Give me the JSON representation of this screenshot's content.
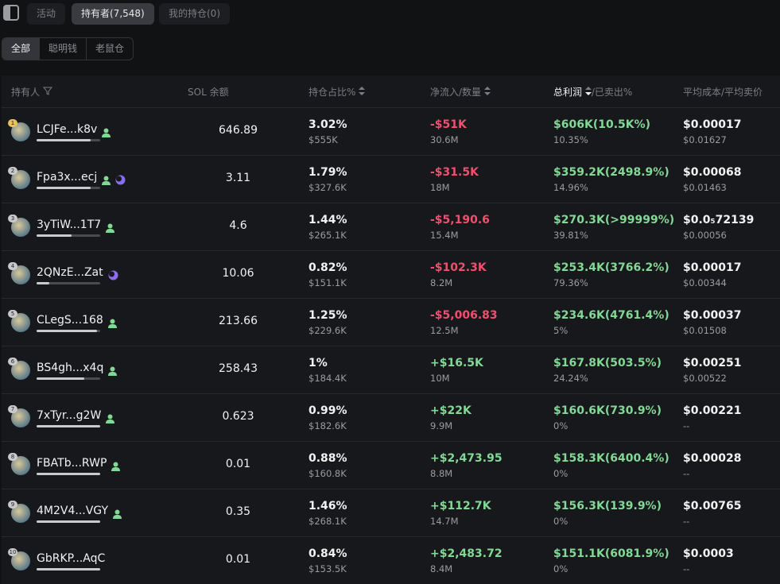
{
  "tabs": [
    "活动",
    "持有者(7,548)",
    "我的持仓(0)"
  ],
  "filters": [
    "全部",
    "聪明钱",
    "老鼠仓"
  ],
  "table": {
    "headers": {
      "holder": "持有人",
      "sol": "SOL 余额",
      "pct": "持仓占比%",
      "flow": "净流入/数量",
      "profit": "总利润",
      "sold": "/已卖出%",
      "avg": "平均成本/平均卖价"
    },
    "rows": [
      {
        "rank": "1",
        "name": "LCJFe...k8v",
        "sol": "646.89",
        "pct": "3.02%",
        "pct_usd": "$555K",
        "flow": "-$51K",
        "qty": "30.6M",
        "profit": "$606K(10.5K%)",
        "sold": "10.35%",
        "cost": "$0.00017",
        "sell": "$0.01627"
      },
      {
        "rank": "2",
        "name": "Fpa3x...ecj",
        "sol": "3.11",
        "pct": "1.79%",
        "pct_usd": "$327.6K",
        "flow": "-$31.5K",
        "qty": "18M",
        "profit": "$359.2K(2498.9%)",
        "sold": "14.96%",
        "cost": "$0.00068",
        "sell": "$0.01463"
      },
      {
        "rank": "3",
        "name": "3yTiW...1T7",
        "sol": "4.6",
        "pct": "1.44%",
        "pct_usd": "$265.1K",
        "flow": "-$5,190.6",
        "qty": "15.4M",
        "profit": "$270.3K(>99999%)",
        "sold": "39.81%",
        "cost": "$0.0₅72139",
        "sell": "$0.00056"
      },
      {
        "rank": "4",
        "name": "2QNzE...Zat",
        "sol": "10.06",
        "pct": "0.82%",
        "pct_usd": "$151.1K",
        "flow": "-$102.3K",
        "qty": "8.2M",
        "profit": "$253.4K(3766.2%)",
        "sold": "79.36%",
        "cost": "$0.00017",
        "sell": "$0.00344"
      },
      {
        "rank": "5",
        "name": "CLegS...168",
        "sol": "213.66",
        "pct": "1.25%",
        "pct_usd": "$229.6K",
        "flow": "-$5,006.83",
        "qty": "12.5M",
        "profit": "$234.6K(4761.4%)",
        "sold": "5%",
        "cost": "$0.00037",
        "sell": "$0.01508"
      },
      {
        "rank": "6",
        "name": "BS4gh...x4q",
        "sol": "258.43",
        "pct": "1%",
        "pct_usd": "$184.4K",
        "flow": "+$16.5K",
        "qty": "10M",
        "profit": "$167.8K(503.5%)",
        "sold": "24.24%",
        "cost": "$0.00251",
        "sell": "$0.00522"
      },
      {
        "rank": "7",
        "name": "7xTyr...g2W",
        "sol": "0.623",
        "pct": "0.99%",
        "pct_usd": "$182.6K",
        "flow": "+$22K",
        "qty": "9.9M",
        "profit": "$160.6K(730.9%)",
        "sold": "0%",
        "cost": "$0.00221",
        "sell": "--"
      },
      {
        "rank": "8",
        "name": "FBATb...RWP",
        "sol": "0.01",
        "pct": "0.88%",
        "pct_usd": "$160.8K",
        "flow": "+$2,473.95",
        "qty": "8.8M",
        "profit": "$158.3K(6400.4%)",
        "sold": "0%",
        "cost": "$0.00028",
        "sell": "--"
      },
      {
        "rank": "9",
        "name": "4M2V4...VGY",
        "sol": "0.35",
        "pct": "1.46%",
        "pct_usd": "$268.1K",
        "flow": "+$112.7K",
        "qty": "14.7M",
        "profit": "$156.3K(139.9%)",
        "sold": "0%",
        "cost": "$0.00765",
        "sell": "--"
      },
      {
        "rank": "10",
        "name": "GbRKP...AqC",
        "sol": "0.01",
        "pct": "0.84%",
        "pct_usd": "$153.5K",
        "flow": "+$2,483.72",
        "qty": "8.4M",
        "profit": "$151.1K(6081.9%)",
        "sold": "0%",
        "cost": "$0.0003",
        "sell": "--"
      }
    ]
  }
}
